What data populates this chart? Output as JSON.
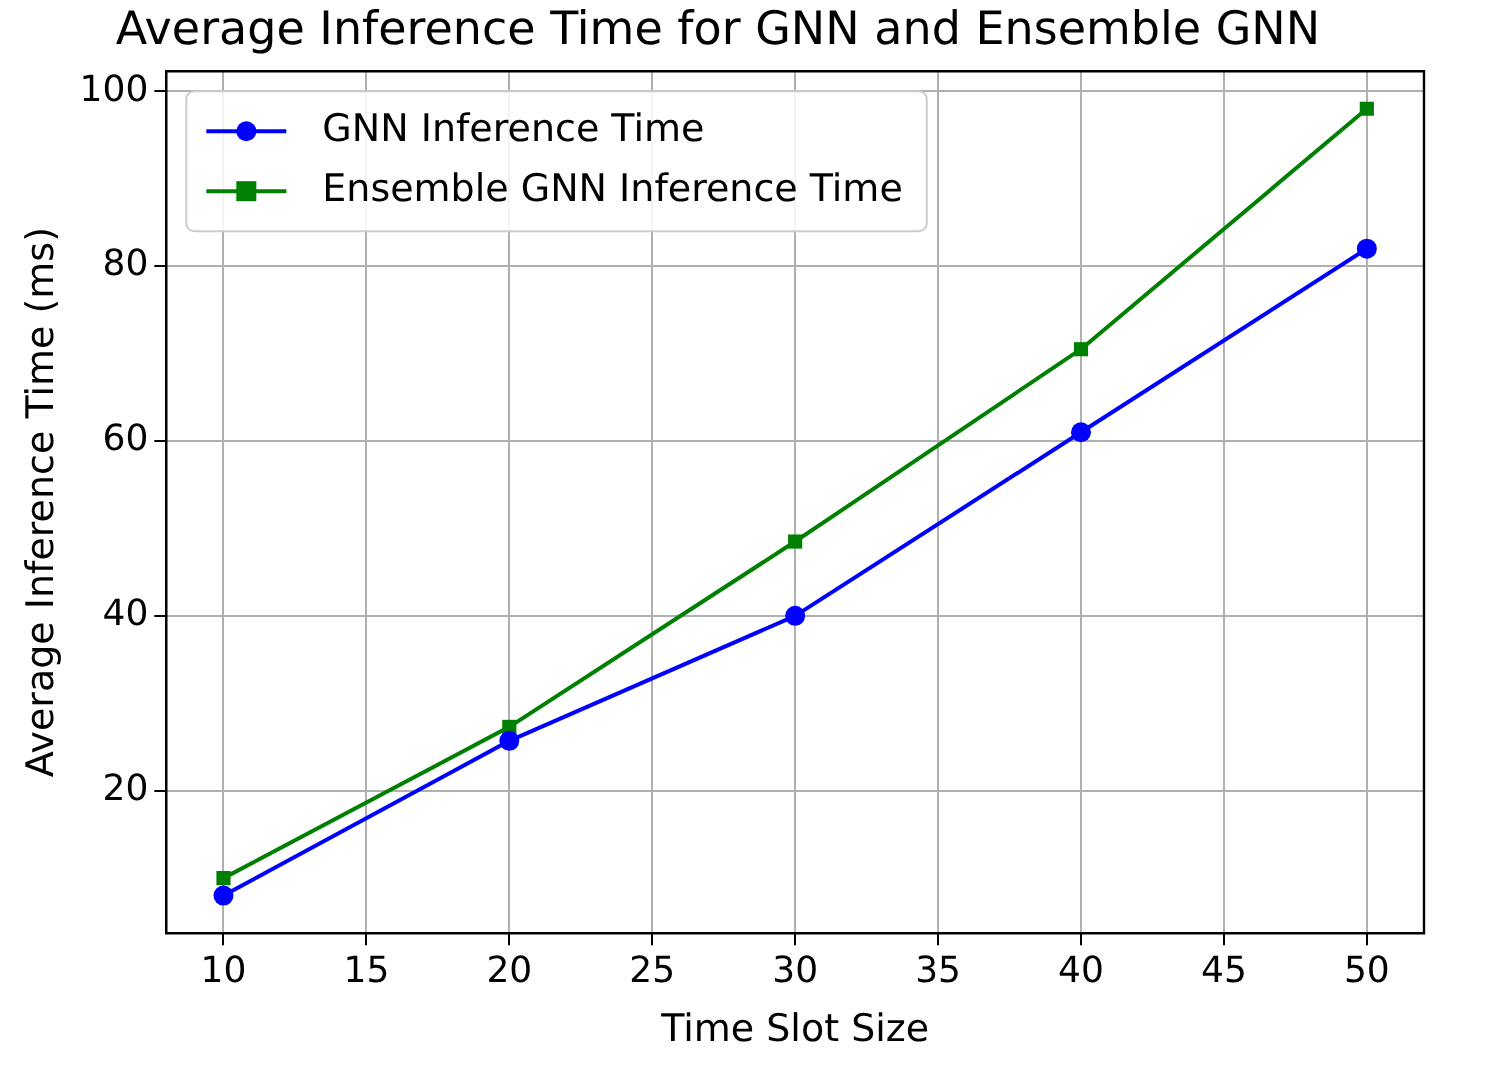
{
  "chart_data": {
    "type": "line",
    "title": "Average Inference Time for GNN and Ensemble GNN",
    "xlabel": "Time Slot Size",
    "ylabel": "Average Inference Time (ms)",
    "x": [
      10,
      20,
      30,
      40,
      50
    ],
    "series": [
      {
        "name": "GNN Inference Time",
        "color": "#0000ff",
        "marker": "circle",
        "values": [
          8,
          25.7,
          40,
          61,
          82
        ]
      },
      {
        "name": "Ensemble GNN Inference Time",
        "color": "#008000",
        "marker": "square",
        "values": [
          10,
          27.3,
          48.5,
          70.5,
          98
        ]
      }
    ],
    "xlim": [
      8,
      52
    ],
    "xticks": [
      10,
      15,
      20,
      25,
      30,
      35,
      40,
      45,
      50
    ],
    "ylim": [
      3.7,
      102.3
    ],
    "yticks": [
      20,
      40,
      60,
      80,
      100
    ],
    "grid": true,
    "legend": "top left"
  }
}
